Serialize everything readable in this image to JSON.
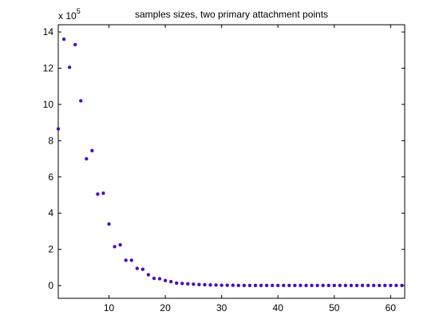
{
  "chart_data": {
    "type": "scatter",
    "title": "samples sizes, two primary attachment points",
    "xlabel": "",
    "ylabel": "",
    "y_multiplier_base": "x 10",
    "y_multiplier_exponent": "5",
    "xlim": [
      1,
      62.5
    ],
    "ylim": [
      -0.7,
      14.4
    ],
    "xticks": [
      10,
      20,
      30,
      40,
      50,
      60
    ],
    "yticks": [
      0,
      2,
      4,
      6,
      8,
      10,
      12,
      14
    ],
    "grid": false,
    "marker_color": "#5a0aa8",
    "series": [
      {
        "x": [
          1,
          2,
          3,
          4,
          5,
          6,
          7,
          8,
          9,
          10,
          11,
          12,
          13,
          14,
          15,
          16,
          17,
          18,
          19,
          20,
          21,
          22,
          23,
          24,
          25,
          26,
          27,
          28,
          29,
          30,
          31,
          32,
          33,
          34,
          35,
          36,
          37,
          38,
          39,
          40,
          41,
          42,
          43,
          44,
          45,
          46,
          47,
          48,
          49,
          50,
          51,
          52,
          53,
          54,
          55,
          56,
          57,
          58,
          59,
          60,
          61,
          62
        ],
        "y": [
          8.65,
          13.6,
          12.05,
          13.3,
          10.2,
          7.0,
          7.45,
          5.05,
          5.1,
          3.4,
          2.15,
          2.25,
          1.4,
          1.4,
          0.95,
          0.9,
          0.6,
          0.4,
          0.38,
          0.28,
          0.22,
          0.14,
          0.12,
          0.1,
          0.08,
          0.06,
          0.05,
          0.04,
          0.03,
          0.02,
          0.02,
          0.02,
          0.01,
          0.01,
          0.01,
          0.01,
          0.01,
          0.01,
          0.01,
          0.01,
          0.01,
          0.01,
          0.01,
          0.01,
          0.01,
          0.01,
          0.01,
          0.01,
          0.01,
          0.01,
          0.01,
          0.01,
          0.01,
          0.01,
          0.01,
          0.01,
          0.01,
          0.01,
          0.01,
          0.01,
          0.01,
          0.01
        ]
      }
    ]
  }
}
